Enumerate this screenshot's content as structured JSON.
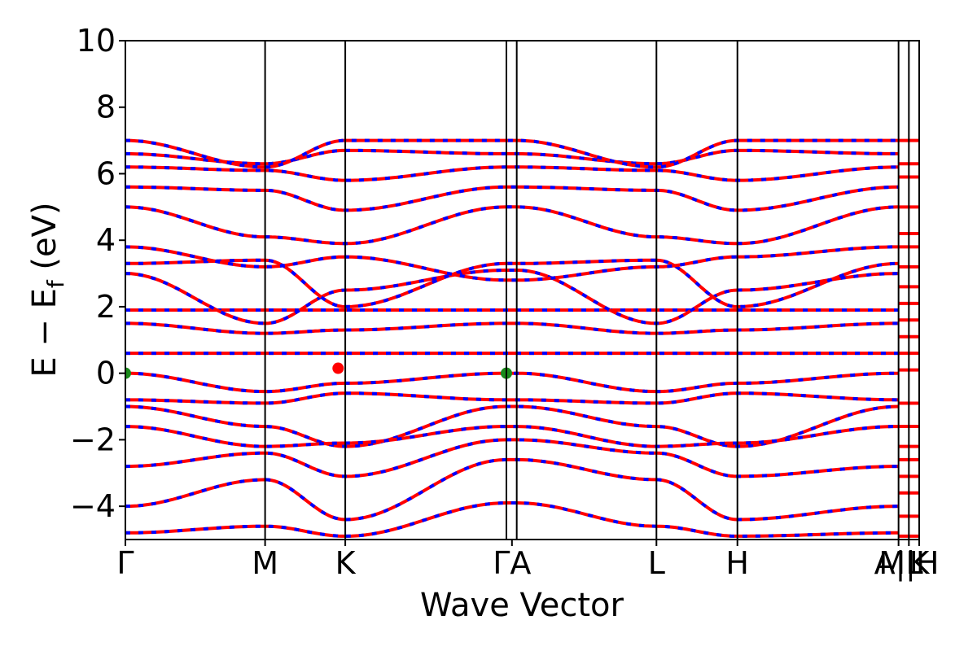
{
  "chart_data": {
    "type": "line",
    "title": "",
    "xlabel": "Wave Vector",
    "ylabel": {
      "main": "E − E",
      "sub": "f",
      "unit": " (eV)"
    },
    "ylim": [
      -5,
      10
    ],
    "yticks": [
      -4,
      -2,
      0,
      2,
      4,
      6,
      8,
      10
    ],
    "ytick_labels": [
      "−4",
      "−2",
      "0",
      "2",
      "4",
      "6",
      "8",
      "10"
    ],
    "grid": false,
    "x_range": [
      0,
      1
    ],
    "high_symmetry_points": [
      {
        "label": "Γ",
        "x": 0.0
      },
      {
        "label": "M",
        "x": 0.176
      },
      {
        "label": "K",
        "x": 0.277
      },
      {
        "label": "Γ",
        "x": 0.48
      },
      {
        "label": "A",
        "x": 0.493
      },
      {
        "label": "L",
        "x": 0.669
      },
      {
        "label": "H",
        "x": 0.771
      },
      {
        "label": "A",
        "x": 0.974
      },
      {
        "label": "L",
        "x": 0.987
      },
      {
        "label": "M",
        "x": 0.987
      },
      {
        "label": "H",
        "x": 1.0
      },
      {
        "label": "K",
        "x": 1.0
      }
    ],
    "xtick_labels_shown": [
      {
        "text": "Γ",
        "x": 0.0
      },
      {
        "text": "M",
        "x": 0.176
      },
      {
        "text": "K",
        "x": 0.277
      },
      {
        "text": "ΓA",
        "x": 0.487
      },
      {
        "text": "L",
        "x": 0.669
      },
      {
        "text": "H",
        "x": 0.771
      },
      {
        "text": "A|L",
        "x": 0.974
      },
      {
        "text": "M|H",
        "x": 0.987
      },
      {
        "text": "K",
        "x": 1.0
      }
    ],
    "band_color_primary": "#ff0000",
    "band_color_secondary": "#0000ff",
    "series": [
      {
        "x": [
          0,
          0.176,
          0.277,
          0.48,
          0.493,
          0.669,
          0.771,
          0.974
        ],
        "y": [
          0.6,
          0.6,
          0.6,
          0.6,
          0.6,
          0.6,
          0.6,
          0.6
        ]
      },
      {
        "x": [
          0,
          0.176,
          0.277,
          0.48,
          0.493,
          0.669,
          0.771,
          0.974
        ],
        "y": [
          0.0,
          -0.55,
          -0.3,
          0.0,
          0.0,
          -0.55,
          -0.3,
          0.0
        ]
      },
      {
        "x": [
          0,
          0.176,
          0.277,
          0.48,
          0.493,
          0.669,
          0.771,
          0.974
        ],
        "y": [
          -0.8,
          -0.9,
          -0.6,
          -0.8,
          -0.8,
          -0.9,
          -0.6,
          -0.8
        ]
      },
      {
        "x": [
          0,
          0.176,
          0.277,
          0.48,
          0.493,
          0.669,
          0.771,
          0.974
        ],
        "y": [
          -1.0,
          -1.6,
          -2.2,
          -1.0,
          -1.0,
          -1.6,
          -2.2,
          -1.0
        ]
      },
      {
        "x": [
          0,
          0.176,
          0.277,
          0.48,
          0.493,
          0.669,
          0.771,
          0.974
        ],
        "y": [
          -1.6,
          -2.2,
          -2.1,
          -1.6,
          -1.6,
          -2.2,
          -2.1,
          -1.6
        ]
      },
      {
        "x": [
          0,
          0.176,
          0.277,
          0.48,
          0.493,
          0.669,
          0.771,
          0.974
        ],
        "y": [
          -2.8,
          -2.4,
          -3.1,
          -2.0,
          -2.0,
          -2.4,
          -3.1,
          -2.8
        ]
      },
      {
        "x": [
          0,
          0.176,
          0.277,
          0.48,
          0.493,
          0.669,
          0.771,
          0.974
        ],
        "y": [
          -4.0,
          -3.2,
          -4.4,
          -2.6,
          -2.6,
          -3.2,
          -4.4,
          -4.0
        ]
      },
      {
        "x": [
          0,
          0.176,
          0.277,
          0.48,
          0.493,
          0.669,
          0.771,
          0.974
        ],
        "y": [
          -4.8,
          -4.6,
          -4.9,
          -3.9,
          -3.9,
          -4.6,
          -4.9,
          -4.8
        ]
      },
      {
        "x": [
          0,
          0.176,
          0.277,
          0.48,
          0.493,
          0.669,
          0.771,
          0.974
        ],
        "y": [
          1.5,
          1.2,
          1.3,
          1.5,
          1.5,
          1.2,
          1.3,
          1.5
        ]
      },
      {
        "x": [
          0,
          0.176,
          0.277,
          0.48,
          0.493,
          0.669,
          0.771,
          0.974
        ],
        "y": [
          1.9,
          1.9,
          1.9,
          1.9,
          1.9,
          1.9,
          1.9,
          1.9
        ]
      },
      {
        "x": [
          0,
          0.176,
          0.277,
          0.48,
          0.493,
          0.669,
          0.771,
          0.974
        ],
        "y": [
          3.0,
          1.5,
          2.5,
          3.1,
          3.1,
          1.5,
          2.5,
          3.0
        ]
      },
      {
        "x": [
          0,
          0.176,
          0.277,
          0.48,
          0.493,
          0.669,
          0.771,
          0.974
        ],
        "y": [
          3.3,
          3.4,
          2.0,
          3.3,
          3.3,
          3.4,
          2.0,
          3.3
        ]
      },
      {
        "x": [
          0,
          0.176,
          0.277,
          0.48,
          0.493,
          0.669,
          0.771,
          0.974
        ],
        "y": [
          3.8,
          3.2,
          3.5,
          2.8,
          2.8,
          3.2,
          3.5,
          3.8
        ]
      },
      {
        "x": [
          0,
          0.176,
          0.277,
          0.48,
          0.493,
          0.669,
          0.771,
          0.974
        ],
        "y": [
          5.0,
          4.1,
          3.9,
          5.0,
          5.0,
          4.1,
          3.9,
          5.0
        ]
      },
      {
        "x": [
          0,
          0.176,
          0.277,
          0.48,
          0.493,
          0.669,
          0.771,
          0.974
        ],
        "y": [
          5.6,
          5.5,
          4.9,
          5.6,
          5.6,
          5.5,
          4.9,
          5.6
        ]
      },
      {
        "x": [
          0,
          0.176,
          0.277,
          0.48,
          0.493,
          0.669,
          0.771,
          0.974
        ],
        "y": [
          6.2,
          6.1,
          5.8,
          6.2,
          6.2,
          6.1,
          5.8,
          6.2
        ]
      },
      {
        "x": [
          0,
          0.176,
          0.277,
          0.48,
          0.493,
          0.669,
          0.771,
          0.974
        ],
        "y": [
          6.6,
          6.3,
          6.7,
          6.6,
          6.6,
          6.3,
          6.7,
          6.6
        ]
      },
      {
        "x": [
          0,
          0.176,
          0.277,
          0.48,
          0.493,
          0.669,
          0.771,
          0.974
        ],
        "y": [
          7.0,
          6.2,
          7.0,
          7.0,
          7.0,
          6.2,
          7.0,
          7.0
        ]
      }
    ],
    "markers": [
      {
        "x": 0.0,
        "y": 0.0,
        "color": "#1a8a1a"
      },
      {
        "x": 0.48,
        "y": 0.0,
        "color": "#1a8a1a"
      },
      {
        "x": 0.268,
        "y": 0.15,
        "color": "#ff0000"
      }
    ]
  }
}
